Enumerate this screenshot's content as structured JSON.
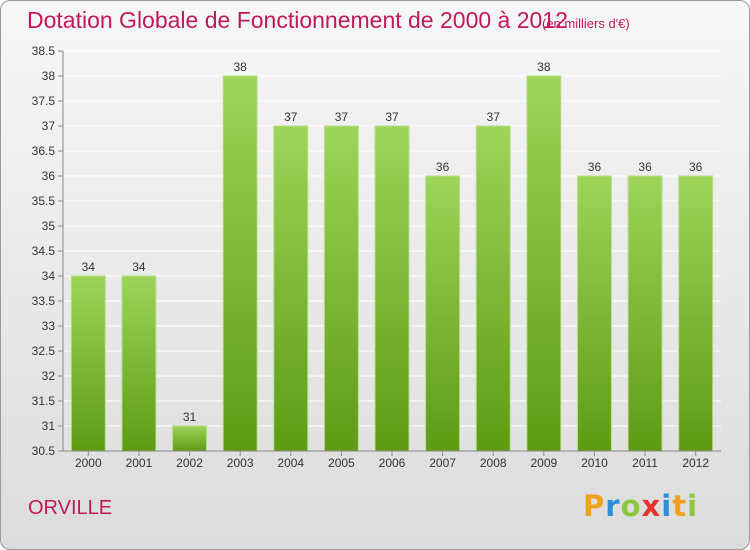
{
  "header": {
    "title": "Dotation Globale de Fonctionnement de 2000 à 2012",
    "unit": "(en milliers d'€)"
  },
  "footer": {
    "commune": "ORVILLE",
    "logo": "Proxiti"
  },
  "colors": {
    "bar_top": "#9ed45a",
    "bar_bottom": "#5e9b14",
    "title": "#c2185b",
    "grid": "#ffffff"
  },
  "chart_data": {
    "type": "bar",
    "categories": [
      "2000",
      "2001",
      "2002",
      "2003",
      "2004",
      "2005",
      "2006",
      "2007",
      "2008",
      "2009",
      "2010",
      "2011",
      "2012"
    ],
    "values": [
      34,
      34,
      31,
      38,
      37,
      37,
      37,
      36,
      37,
      38,
      36,
      36,
      36
    ],
    "title": "Dotation Globale de Fonctionnement de 2000 à 2012",
    "xlabel": "",
    "ylabel": "",
    "ylim": [
      30.5,
      38.5
    ],
    "yticks": [
      "30.5",
      "31",
      "31.5",
      "32",
      "32.5",
      "33",
      "33.5",
      "34",
      "34.5",
      "35",
      "35.5",
      "36",
      "36.5",
      "37",
      "37.5",
      "38",
      "38.5"
    ],
    "grid": true,
    "legend": "none"
  }
}
